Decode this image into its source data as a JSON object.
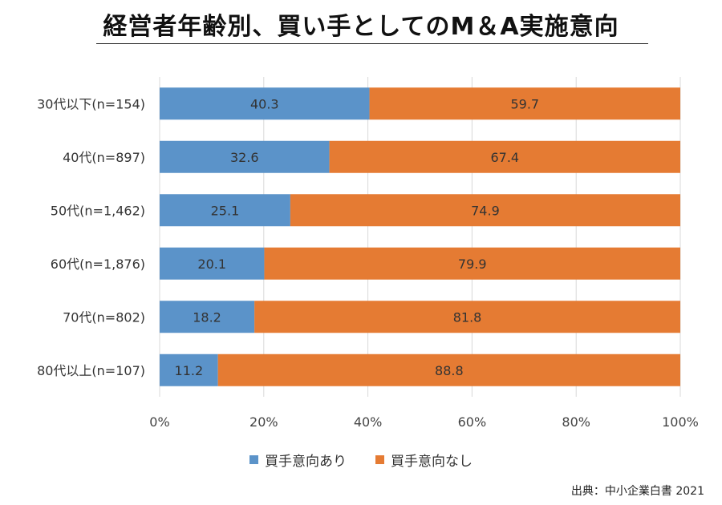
{
  "chart_data": {
    "type": "bar",
    "orientation": "horizontal",
    "stacked": true,
    "title": "経営者年齢別、買い手としてのM＆A実施意向",
    "categories": [
      "30代以下(n=154)",
      "40代(n=897)",
      "50代(n=1,462)",
      "60代(n=1,876)",
      "70代(n=802)",
      "80代以上(n=107)"
    ],
    "series": [
      {
        "name": "買手意向あり",
        "color": "#5B93C9",
        "values": [
          40.3,
          32.6,
          25.1,
          20.1,
          18.2,
          11.2
        ]
      },
      {
        "name": "買手意向なし",
        "color": "#E57B33",
        "values": [
          59.7,
          67.4,
          74.9,
          79.9,
          81.8,
          88.8
        ]
      }
    ],
    "xlim": [
      0,
      100
    ],
    "xticks": [
      "0%",
      "20%",
      "40%",
      "60%",
      "80%",
      "100%"
    ],
    "grid": true,
    "legend": "bottom",
    "source": "出典：中小企業白書 2021"
  }
}
